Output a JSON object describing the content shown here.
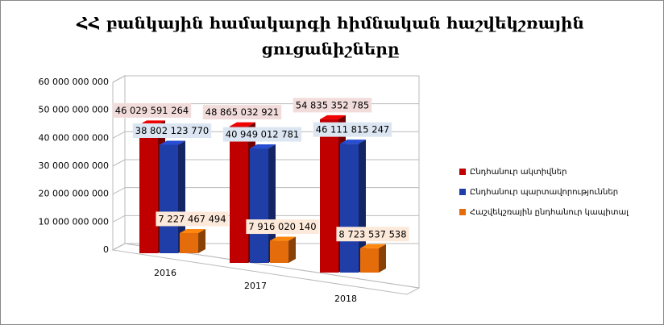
{
  "chart_data": {
    "type": "bar3d",
    "title_lines": [
      "ՀՀ բանկային համակարգի հիմնական հաշվեկշռային",
      "ցուցանիշները"
    ],
    "categories": [
      "2016",
      "2017",
      "2018"
    ],
    "series": [
      {
        "name": "Ընդհանուր ակտիվներ",
        "color": "#c00000",
        "values": [
          46029591264,
          48865032921,
          54835352785
        ],
        "value_labels": [
          "46 029 591 264",
          "48 865 032 921",
          "54 835 352 785"
        ],
        "label_bg": "#f2dcdb"
      },
      {
        "name": "Ընդհանուր պարտավորություններ",
        "color": "#1f3ea8",
        "values": [
          38802123770,
          40949012781,
          46111815247
        ],
        "value_labels": [
          "38 802 123 770",
          "40 949 012 781",
          "46 111 815 247"
        ],
        "label_bg": "#dce6f2"
      },
      {
        "name": "Հաշվեկշռային ընդհանուր կապիտալ",
        "color": "#e46c0a",
        "values": [
          7227467494,
          7916020140,
          8723537538
        ],
        "value_labels": [
          "7 227 467 494",
          "7 916 020 140",
          "8 723 537 538"
        ],
        "label_bg": "#fde9d9"
      }
    ],
    "ylim": [
      0,
      60000000000
    ],
    "yticks": [
      0,
      {
        "value": 10000000000,
        "label": "10 000 000 000"
      },
      {
        "value": 20000000000,
        "label": "20 000 000 000"
      },
      {
        "value": 30000000000,
        "label": "30 000 000 000"
      },
      {
        "value": 40000000000,
        "label": "40 000 000 000"
      },
      {
        "value": 50000000000,
        "label": "50 000 000 000"
      },
      {
        "value": 60000000000,
        "label": "60 000 000 000"
      }
    ],
    "grid": true,
    "legend": "right"
  }
}
